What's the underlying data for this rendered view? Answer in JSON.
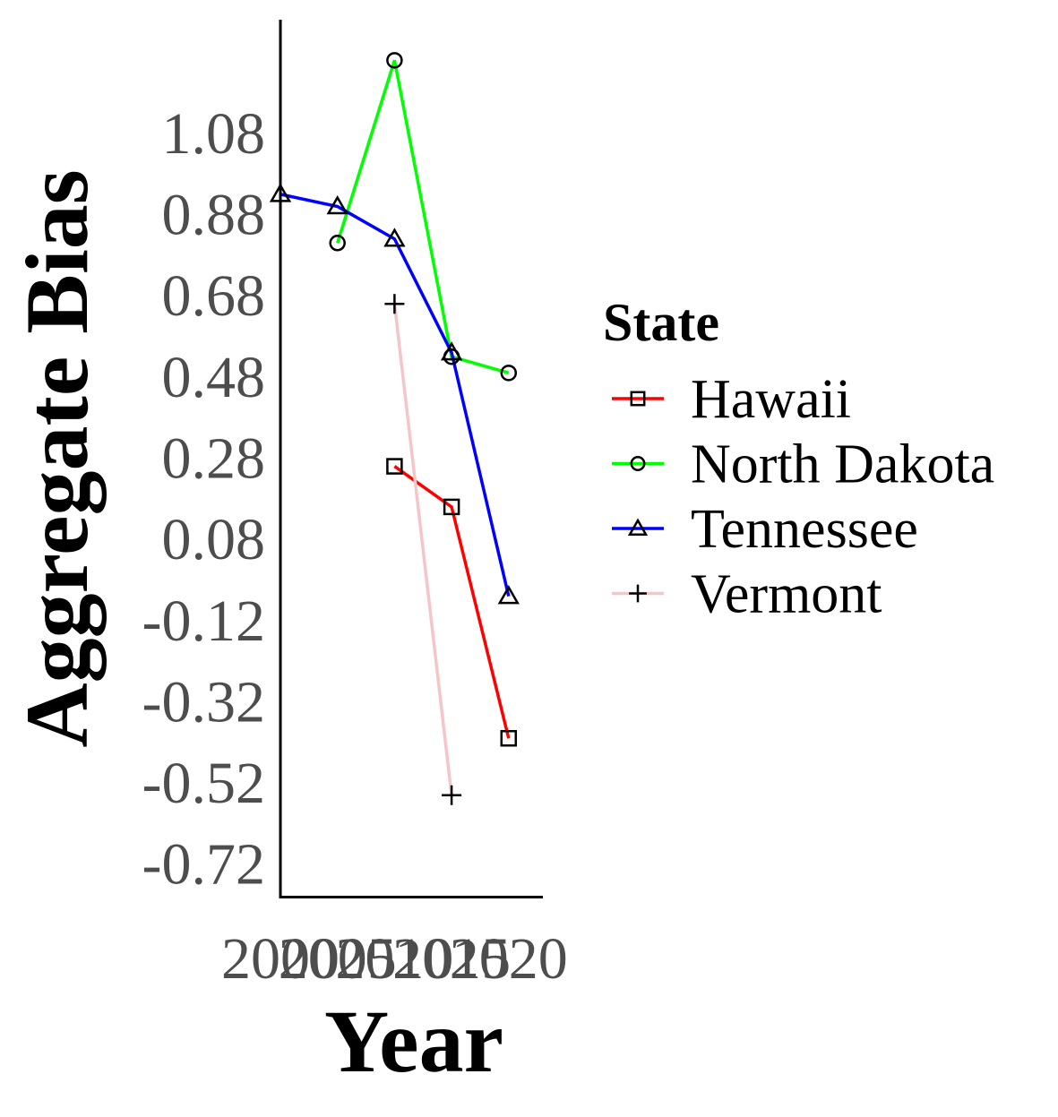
{
  "chart_data": {
    "type": "line",
    "xlabel": "Year",
    "ylabel": "Aggregate Bias",
    "x_ticks": [
      "2000",
      "2005",
      "2010",
      "2015",
      "2020"
    ],
    "x_range": [
      2000,
      2023
    ],
    "y_ticks": [
      "-0.72",
      "-0.52",
      "-0.32",
      "-0.12",
      "0.08",
      "0.28",
      "0.48",
      "0.68",
      "0.88",
      "1.08"
    ],
    "y_range": [
      -0.8,
      1.36
    ],
    "legend_title": "State",
    "legend_position": "right",
    "grid": false,
    "series": [
      {
        "name": "Hawaii",
        "color": "#ff0000",
        "marker": "square",
        "points": [
          {
            "x": 2010,
            "y": 0.26
          },
          {
            "x": 2015,
            "y": 0.16
          },
          {
            "x": 2020,
            "y": -0.41
          }
        ]
      },
      {
        "name": "North Dakota",
        "color": "#00ff00",
        "marker": "circle",
        "points": [
          {
            "x": 2005,
            "y": 0.81
          },
          {
            "x": 2010,
            "y": 1.26
          },
          {
            "x": 2015,
            "y": 0.53
          },
          {
            "x": 2020,
            "y": 0.49
          }
        ]
      },
      {
        "name": "Tennessee",
        "color": "#0000ff",
        "marker": "triangle",
        "points": [
          {
            "x": 2000,
            "y": 0.93
          },
          {
            "x": 2005,
            "y": 0.9
          },
          {
            "x": 2010,
            "y": 0.82
          },
          {
            "x": 2015,
            "y": 0.54
          },
          {
            "x": 2020,
            "y": -0.06
          }
        ]
      },
      {
        "name": "Vermont",
        "color": "#f4c6c9",
        "marker": "plus",
        "points": [
          {
            "x": 2010,
            "y": 0.66
          },
          {
            "x": 2015,
            "y": -0.55
          }
        ]
      }
    ]
  }
}
